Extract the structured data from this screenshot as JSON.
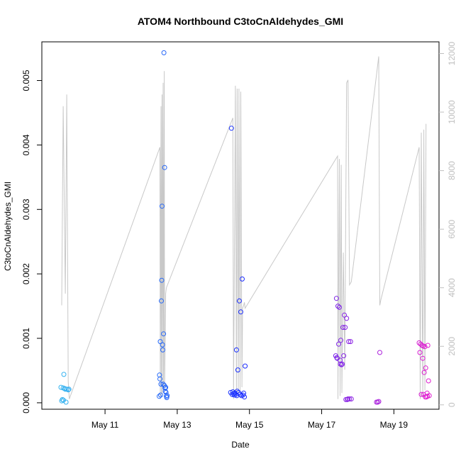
{
  "chart_data": {
    "type": "scatter",
    "title": "ATOM4 Northbound C3toCnAldehydes_GMI",
    "xlabel": "Date",
    "ylabel": "C3toCnAldehydes_GMI",
    "xlim": [
      "2018-05-09 06:00",
      "2018-05-20 06:00"
    ],
    "ylim": [
      -0.0001,
      0.0056
    ],
    "y2lim": [
      -150,
      12400
    ],
    "x_ticks": [
      {
        "date": "2018-05-11 00:00",
        "label": "May 11"
      },
      {
        "date": "2018-05-13 00:00",
        "label": "May 13"
      },
      {
        "date": "2018-05-15 00:00",
        "label": "May 15"
      },
      {
        "date": "2018-05-17 00:00",
        "label": "May 17"
      },
      {
        "date": "2018-05-19 00:00",
        "label": "May 19"
      }
    ],
    "y_ticks": [
      {
        "value": 0,
        "label": "0.000"
      },
      {
        "value": 0.001,
        "label": "0.001"
      },
      {
        "value": 0.002,
        "label": "0.002"
      },
      {
        "value": 0.003,
        "label": "0.003"
      },
      {
        "value": 0.004,
        "label": "0.004"
      },
      {
        "value": 0.005,
        "label": "0.005"
      }
    ],
    "y2_ticks": [
      {
        "value": 0,
        "label": "0"
      },
      {
        "value": 2000,
        "label": "2000"
      },
      {
        "value": 4000,
        "label": "4000"
      },
      {
        "value": 6000,
        "label": "6000"
      },
      {
        "value": 8000,
        "label": "8000"
      },
      {
        "value": 10000,
        "label": "10000"
      },
      {
        "value": 12000,
        "label": "12000"
      }
    ],
    "grid": false,
    "legend": "none",
    "colors": {
      "altitude_line": "#c8c8c8",
      "point_early": "#35b4f0",
      "point_mid": "#1a2bff",
      "point_late": "#e01fd0"
    },
    "secondary_series": {
      "axis": "right",
      "style": "line",
      "x": [
        "2018-05-09 19:12",
        "2018-05-09 20:10",
        "2018-05-09 21:36",
        "2018-05-09 22:34",
        "2018-05-09 23:31",
        "2018-05-10 00:14",
        "2018-05-12 12:29",
        "2018-05-12 12:43",
        "2018-05-12 13:12",
        "2018-05-12 13:26",
        "2018-05-12 13:55",
        "2018-05-12 14:10",
        "2018-05-12 14:38",
        "2018-05-12 14:53",
        "2018-05-12 15:22",
        "2018-05-12 15:36",
        "2018-05-12 16:19",
        "2018-05-12 16:48",
        "2018-05-14 12:58",
        "2018-05-14 13:26",
        "2018-05-14 14:38",
        "2018-05-14 15:22",
        "2018-05-14 15:50",
        "2018-05-14 16:34",
        "2018-05-14 17:02",
        "2018-05-14 17:46",
        "2018-05-14 18:14",
        "2018-05-14 18:58",
        "2018-05-14 19:26",
        "2018-05-14 20:10",
        "2018-05-14 20:38",
        "2018-05-14 21:07",
        "2018-05-17 10:34",
        "2018-05-17 10:48",
        "2018-05-17 11:46",
        "2018-05-17 12:14",
        "2018-05-17 12:58",
        "2018-05-17 13:26",
        "2018-05-17 14:24",
        "2018-05-17 15:22",
        "2018-05-17 16:34",
        "2018-05-17 17:31",
        "2018-05-17 18:29",
        "2018-05-17 19:41",
        "2018-05-18 13:55",
        "2018-05-18 14:38",
        "2018-05-18 15:22",
        "2018-05-19 16:48",
        "2018-05-19 17:31",
        "2018-05-19 18:14",
        "2018-05-19 19:12",
        "2018-05-19 19:55",
        "2018-05-19 20:38",
        "2018-05-19 21:22"
      ],
      "y": [
        3400,
        10200,
        3800,
        10600,
        800,
        200,
        8800,
        200,
        10200,
        300,
        10600,
        400,
        11000,
        500,
        11400,
        600,
        3800,
        4000,
        9800,
        200,
        10900,
        300,
        10800,
        400,
        10800,
        500,
        10700,
        600,
        3300,
        3400,
        3500,
        3300,
        8500,
        200,
        8400,
        300,
        8200,
        400,
        5200,
        1200,
        11000,
        11100,
        4100,
        4200,
        11900,
        3400,
        3600,
        8800,
        200,
        9300,
        300,
        9400,
        500,
        9600
      ]
    },
    "series": [
      {
        "x": [
          "2018-05-09 18:43",
          "2018-05-09 19:12",
          "2018-05-09 19:41",
          "2018-05-09 20:10",
          "2018-05-09 20:38",
          "2018-05-09 21:07",
          "2018-05-09 21:36",
          "2018-05-09 22:05",
          "2018-05-09 22:34",
          "2018-05-09 23:31",
          "2018-05-10 00:00",
          "2018-05-09 20:24"
        ],
        "y": [
          0.00024,
          3e-05,
          5e-05,
          0.00023,
          0.00044,
          0.00022,
          0.00021,
          1e-05,
          0.00021,
          0.0002,
          0.00021,
          4e-05
        ]
      },
      {
        "x": [
          "2018-05-12 12:00",
          "2018-05-12 12:14",
          "2018-05-12 12:29",
          "2018-05-12 12:43",
          "2018-05-12 12:58",
          "2018-05-12 13:12",
          "2018-05-12 13:26",
          "2018-05-12 13:41",
          "2018-05-12 13:55",
          "2018-05-12 14:10",
          "2018-05-12 14:24",
          "2018-05-12 14:38",
          "2018-05-12 14:53",
          "2018-05-12 15:07",
          "2018-05-12 15:22",
          "2018-05-12 15:36",
          "2018-05-12 15:50",
          "2018-05-12 16:05",
          "2018-05-12 16:19",
          "2018-05-12 16:34",
          "2018-05-12 16:48",
          "2018-05-12 17:02",
          "2018-05-12 17:17"
        ],
        "y": [
          0.0001,
          0.00043,
          0.00037,
          0.00095,
          0.00012,
          0.00029,
          0.00158,
          0.0019,
          0.00305,
          0.0009,
          0.00082,
          0.00029,
          0.00107,
          0.00543,
          0.00027,
          0.00365,
          0.00023,
          0.00018,
          0.00024,
          0.00016,
          0.0001,
          8e-05,
          0.00011
        ]
      },
      {
        "x": [
          "2018-05-14 11:31",
          "2018-05-14 12:00",
          "2018-05-14 12:29",
          "2018-05-14 12:58",
          "2018-05-14 13:26",
          "2018-05-14 13:55",
          "2018-05-14 14:24",
          "2018-05-14 14:53",
          "2018-05-14 15:22",
          "2018-05-14 15:50",
          "2018-05-14 16:19",
          "2018-05-14 16:48",
          "2018-05-14 17:17",
          "2018-05-14 17:46",
          "2018-05-14 18:14",
          "2018-05-14 18:43",
          "2018-05-14 19:12",
          "2018-05-14 19:41",
          "2018-05-14 20:10",
          "2018-05-14 20:38",
          "2018-05-14 21:07",
          "2018-05-14 14:10",
          "2018-05-14 15:36"
        ],
        "y": [
          0.00016,
          0.00426,
          0.00013,
          0.00017,
          0.00014,
          0.00012,
          0.00015,
          0.00013,
          0.00082,
          0.00018,
          0.00051,
          0.00016,
          0.00158,
          0.00013,
          0.00141,
          0.00011,
          0.00192,
          0.00012,
          0.00015,
          9e-05,
          0.00057,
          0.00015,
          0.00011
        ]
      },
      {
        "x": [
          "2018-05-17 09:22",
          "2018-05-17 09:50",
          "2018-05-17 10:19",
          "2018-05-17 10:48",
          "2018-05-17 11:17",
          "2018-05-17 11:46",
          "2018-05-17 12:14",
          "2018-05-17 12:43",
          "2018-05-17 13:12",
          "2018-05-17 13:41",
          "2018-05-17 14:10",
          "2018-05-17 14:38",
          "2018-05-17 15:07",
          "2018-05-17 15:36",
          "2018-05-17 16:05",
          "2018-05-17 16:34",
          "2018-05-17 17:02",
          "2018-05-17 17:31",
          "2018-05-17 18:00",
          "2018-05-17 18:29",
          "2018-05-17 19:12",
          "2018-05-17 19:41",
          "2018-05-17 10:05",
          "2018-05-17 12:29"
        ],
        "y": [
          0.00073,
          0.00162,
          0.00069,
          0.0015,
          0.00091,
          0.00148,
          0.00066,
          0.00097,
          0.00059,
          0.0006,
          0.00117,
          0.00073,
          0.00136,
          0.00117,
          5e-05,
          0.00131,
          5e-05,
          6e-05,
          0.00095,
          6e-05,
          0.00095,
          6e-05,
          0.0007,
          0.0006
        ]
      },
      {
        "x": [
          "2018-05-18 12:29",
          "2018-05-18 13:12",
          "2018-05-18 13:55",
          "2018-05-18 14:38",
          "2018-05-19 16:48",
          "2018-05-19 17:17",
          "2018-05-19 17:46",
          "2018-05-19 18:14",
          "2018-05-19 18:43",
          "2018-05-19 19:12",
          "2018-05-19 19:41",
          "2018-05-19 20:10",
          "2018-05-19 20:38",
          "2018-05-19 21:07",
          "2018-05-19 21:36",
          "2018-05-19 22:05",
          "2018-05-19 22:34",
          "2018-05-19 23:02",
          "2018-05-19 23:31",
          "2018-05-19 19:26",
          "2018-05-19 20:53",
          "2018-05-19 22:19"
        ],
        "y": [
          1e-05,
          1e-05,
          2e-05,
          0.00078,
          0.00093,
          0.00078,
          0.00091,
          0.00013,
          0.00089,
          0.00069,
          0.00013,
          0.00047,
          0.00087,
          0.00054,
          9e-05,
          0.00015,
          0.00089,
          0.00034,
          0.00011,
          0.00088,
          9e-05,
          0.0001
        ]
      }
    ]
  }
}
